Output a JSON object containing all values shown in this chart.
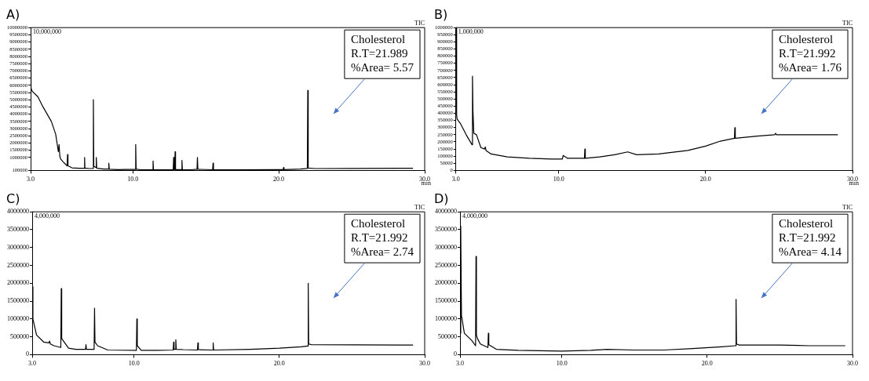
{
  "chart_data": [
    {
      "type": "line",
      "title": "A)",
      "marker": "none",
      "annotations": [
        "Cholesterol\nR.T=21.989\n%Area= 5.57",
        "10,000,000",
        "TIC",
        "min"
      ],
      "xlim": [
        3,
        30
      ],
      "xticks": [
        {
          "value": 3,
          "label": "3.0"
        },
        {
          "value": 10,
          "label": "10.0"
        },
        {
          "value": 20,
          "label": "20.0"
        },
        {
          "value": 30,
          "label": "30.0"
        }
      ],
      "ylim": [
        100000,
        10000000
      ],
      "yticks": [
        100000,
        1000000,
        1500000,
        2000000,
        2500000,
        3000000,
        3500000,
        4000000,
        4500000,
        5000000,
        5500000,
        6000000,
        6500000,
        7000000,
        7500000,
        8000000,
        8500000,
        9000000,
        9500000,
        10000000
      ],
      "series": [
        {
          "color": "#000000",
          "x": [
            3.0,
            3.03,
            3.1,
            3.5,
            3.85,
            4.42,
            4.72,
            4.9,
            4.95,
            5.0,
            5.05,
            5.22,
            5.5,
            5.53,
            5.56,
            5.83,
            6.3,
            6.68,
            6.7,
            6.72,
            7.0,
            7.27,
            7.3,
            7.33,
            7.48,
            7.5,
            7.53,
            8.0,
            8.33,
            8.36,
            8.39,
            9.0,
            9.5,
            10.17,
            10.2,
            10.23,
            10.5,
            11.36,
            11.39,
            11.42,
            12.0,
            12.77,
            12.8,
            12.83,
            12.87,
            12.9,
            12.93,
            13.34,
            13.37,
            13.4,
            14.0,
            14.4,
            14.43,
            14.46,
            15.47,
            15.5,
            15.53,
            17.0,
            20.0,
            20.3,
            20.33,
            20.36,
            21.5,
            21.96,
            21.99,
            22.02,
            22.5,
            25.0,
            29.2
          ],
          "values": [
            7700000,
            5800000,
            5600000,
            5200000,
            4500000,
            3500000,
            2600000,
            1400000,
            1900000,
            1100000,
            900000,
            700000,
            420000,
            1200000,
            420000,
            280000,
            250000,
            250000,
            1000000,
            260000,
            230000,
            240000,
            5000000,
            400000,
            300000,
            1000000,
            250000,
            200000,
            200000,
            600000,
            180000,
            160000,
            170000,
            170000,
            1900000,
            200000,
            150000,
            150000,
            750000,
            150000,
            150000,
            160000,
            1000000,
            160000,
            160000,
            1400000,
            160000,
            160000,
            800000,
            160000,
            150000,
            180000,
            1000000,
            180000,
            150000,
            600000,
            150000,
            150000,
            160000,
            160000,
            300000,
            160000,
            200000,
            240000,
            5650000,
            260000,
            230000,
            240000,
            250000
          ]
        }
      ]
    },
    {
      "type": "line",
      "title": "B)",
      "marker": "none",
      "annotations": [
        "Cholesterol\nR.T=21.992\n%Area= 1.76",
        "1,000,000",
        "TIC",
        "min"
      ],
      "xlim": [
        3,
        30
      ],
      "xticks": [
        {
          "value": 3,
          "label": "3.0"
        },
        {
          "value": 10,
          "label": "10.0"
        },
        {
          "value": 20,
          "label": "20.0"
        },
        {
          "value": 30,
          "label": "30.0"
        }
      ],
      "ylim": [
        0,
        1000000
      ],
      "yticks": [
        0,
        50000,
        100000,
        150000,
        200000,
        250000,
        300000,
        350000,
        400000,
        450000,
        500000,
        550000,
        600000,
        650000,
        700000,
        750000,
        800000,
        850000,
        900000,
        950000,
        1000000
      ],
      "series": [
        {
          "color": "#000000",
          "x": [
            3.0,
            3.02,
            3.05,
            3.08,
            3.3,
            3.7,
            4.1,
            4.13,
            4.16,
            4.22,
            4.4,
            4.7,
            4.95,
            5.0,
            5.05,
            5.4,
            6.5,
            8.0,
            9.5,
            10.25,
            10.3,
            10.6,
            11.75,
            11.78,
            11.81,
            12.8,
            13.8,
            14.7,
            15.3,
            16.8,
            18.8,
            20.0,
            21.0,
            21.96,
            21.99,
            22.02,
            23.5,
            24.7,
            24.76,
            24.82,
            26.0,
            29.0
          ],
          "values": [
            1000000,
            1000000,
            390000,
            360000,
            330000,
            250000,
            180000,
            660000,
            420000,
            260000,
            250000,
            160000,
            150000,
            165000,
            140000,
            115000,
            95000,
            85000,
            80000,
            80000,
            105000,
            85000,
            85000,
            150000,
            85000,
            95000,
            110000,
            130000,
            110000,
            115000,
            140000,
            170000,
            205000,
            225000,
            300000,
            225000,
            240000,
            250000,
            260000,
            250000,
            250000,
            250000
          ]
        }
      ]
    },
    {
      "type": "line",
      "title": "C)",
      "marker": "none",
      "annotations": [
        "Cholesterol\nR.T=21.992\n%Area= 2.74",
        "4,000,000",
        "TIC"
      ],
      "xlim": [
        3,
        30
      ],
      "xticks": [
        {
          "value": 3,
          "label": "3.0"
        },
        {
          "value": 10,
          "label": "10.0"
        },
        {
          "value": 20,
          "label": "20.0"
        },
        {
          "value": 30,
          "label": "30.0"
        }
      ],
      "ylim": [
        0,
        4000000
      ],
      "yticks": [
        0,
        500000,
        1000000,
        1500000,
        2000000,
        2500000,
        3000000,
        3500000,
        4000000
      ],
      "series": [
        {
          "color": "#000000",
          "x": [
            3.0,
            3.05,
            3.3,
            3.8,
            4.15,
            4.2,
            4.25,
            4.5,
            4.97,
            5.0,
            5.03,
            5.5,
            6.0,
            6.67,
            6.7,
            6.73,
            7.26,
            7.29,
            7.32,
            7.5,
            8.2,
            10.17,
            10.2,
            10.23,
            10.5,
            11.6,
            12.7,
            12.73,
            12.76,
            12.85,
            12.88,
            12.91,
            13.4,
            14.37,
            14.4,
            14.43,
            15.42,
            15.45,
            15.48,
            18.0,
            20.0,
            21.5,
            21.96,
            21.99,
            22.02,
            22.2,
            29.2
          ],
          "values": [
            1900000,
            1000000,
            550000,
            350000,
            330000,
            380000,
            300000,
            250000,
            200000,
            1850000,
            450000,
            180000,
            150000,
            150000,
            280000,
            150000,
            150000,
            1300000,
            350000,
            250000,
            130000,
            120000,
            1000000,
            250000,
            120000,
            120000,
            130000,
            350000,
            150000,
            150000,
            420000,
            150000,
            140000,
            130000,
            330000,
            140000,
            130000,
            330000,
            130000,
            150000,
            180000,
            220000,
            240000,
            2000000,
            300000,
            280000,
            270000
          ]
        }
      ]
    },
    {
      "type": "line",
      "title": "D)",
      "marker": "none",
      "annotations": [
        "Cholesterol\nR.T=21.992\n%Area= 4.14",
        "4,000,000",
        "TIC"
      ],
      "xlim": [
        3,
        30
      ],
      "xticks": [
        {
          "value": 3,
          "label": "3.0"
        },
        {
          "value": 10,
          "label": "10.0"
        },
        {
          "value": 20,
          "label": "20.0"
        },
        {
          "value": 30,
          "label": "30.0"
        }
      ],
      "ylim": [
        0,
        4000000
      ],
      "yticks": [
        0,
        500000,
        1000000,
        1500000,
        2000000,
        2500000,
        3000000,
        3500000,
        4000000
      ],
      "series": [
        {
          "color": "#000000",
          "x": [
            3.0,
            3.05,
            3.1,
            3.3,
            3.8,
            4.07,
            4.1,
            4.13,
            4.2,
            4.4,
            4.92,
            4.95,
            4.98,
            5.1,
            5.5,
            7.0,
            10.0,
            12.0,
            13.1,
            15.0,
            17.0,
            19.0,
            21.0,
            21.96,
            21.99,
            22.02,
            22.2,
            25.0,
            27.0,
            29.5
          ],
          "values": [
            600000,
            3600000,
            1100000,
            600000,
            400000,
            250000,
            2750000,
            550000,
            450000,
            300000,
            200000,
            600000,
            280000,
            250000,
            150000,
            120000,
            100000,
            120000,
            150000,
            130000,
            130000,
            170000,
            220000,
            250000,
            1550000,
            300000,
            270000,
            270000,
            250000,
            250000
          ]
        }
      ]
    }
  ]
}
